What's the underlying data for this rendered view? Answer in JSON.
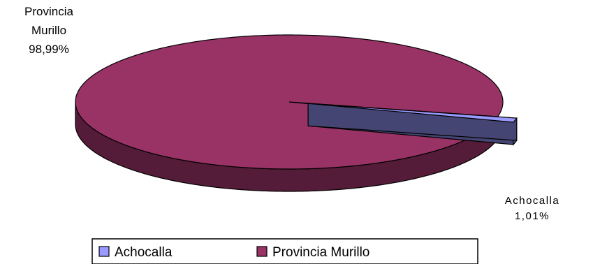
{
  "chart_data": {
    "type": "pie",
    "style": "3d-exploded",
    "slices": [
      {
        "label": "Achocalla",
        "value": 1.01,
        "display": "1,01%",
        "color": "#9999ff"
      },
      {
        "label": "Provincia Murillo",
        "value": 98.99,
        "display": "98,99%",
        "color": "#993366"
      }
    ],
    "data_labels": {
      "murillo_line1": "Provincia",
      "murillo_line2": "Murillo",
      "murillo_value": "98,99%",
      "achocalla_name": "Achocalla",
      "achocalla_value": "1,01%"
    },
    "legend": {
      "position": "bottom",
      "items": [
        "Achocalla",
        "Provincia Murillo"
      ]
    }
  }
}
